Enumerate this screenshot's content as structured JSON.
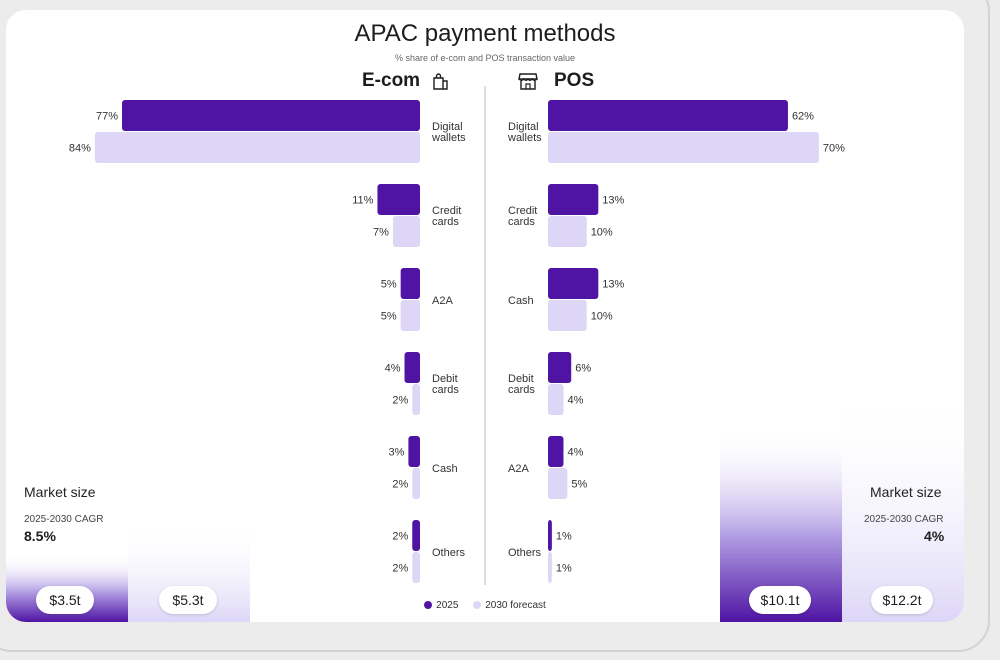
{
  "title": "APAC payment methods",
  "subtitle": "% share of e-com and POS transaction value",
  "colors": {
    "y2025": "#4f14a3",
    "y2030": "#ddd6f7",
    "text": "#1d1d1d"
  },
  "legend": {
    "y2025": "2025",
    "y2030": "2030 forecast"
  },
  "chart_data": [
    {
      "type": "bar",
      "title": "E-com",
      "unit": "%",
      "categories": [
        "Digital wallets",
        "Credit cards",
        "A2A",
        "Debit cards",
        "Cash",
        "Others"
      ],
      "series": [
        {
          "name": "2025",
          "values": [
            77,
            11,
            5,
            4,
            3,
            2
          ]
        },
        {
          "name": "2030 forecast",
          "values": [
            84,
            7,
            5,
            2,
            2,
            2
          ]
        }
      ]
    },
    {
      "type": "bar",
      "title": "POS",
      "unit": "%",
      "categories": [
        "Digital wallets",
        "Credit cards",
        "Cash",
        "Debit cards",
        "A2A",
        "Others"
      ],
      "series": [
        {
          "name": "2025",
          "values": [
            62,
            13,
            13,
            6,
            4,
            1
          ]
        },
        {
          "name": "2030 forecast",
          "values": [
            70,
            10,
            10,
            4,
            5,
            1
          ]
        }
      ]
    }
  ],
  "market": {
    "label": "Market size",
    "cagr_label": "2025-2030 CAGR",
    "ecom": {
      "cagr": "8.5%",
      "size_2025": "$3.5t",
      "size_2030": "$5.3t",
      "value_2025": 3.5,
      "value_2030": 5.3
    },
    "pos": {
      "cagr": "4%",
      "size_2025": "$10.1t",
      "size_2030": "$12.2t",
      "value_2025": 10.1,
      "value_2030": 12.2
    }
  }
}
